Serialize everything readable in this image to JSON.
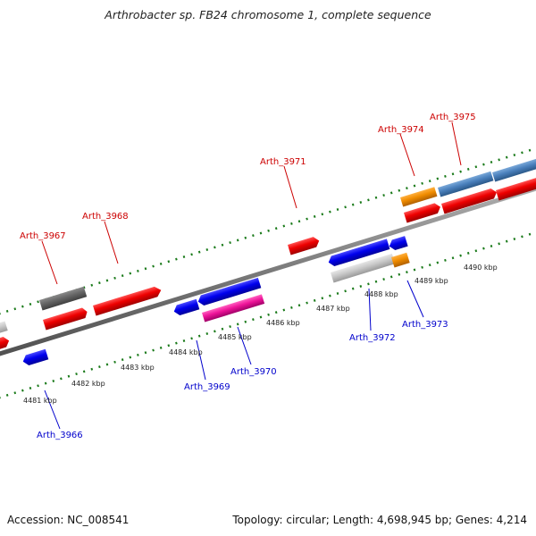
{
  "title": "Arthrobacter sp. FB24 chromosome 1, complete sequence",
  "footer": {
    "accession": "Accession: NC_008541",
    "summary": "Topology: circular; Length: 4,698,945 bp; Genes: 4,214"
  },
  "colors": {
    "forward_label": "#cc0000",
    "reverse_label": "#0000cc",
    "tick": "#1a7a1a",
    "backbone": "#7a7a7a"
  },
  "scale_labels": [
    "4481 kbp",
    "4482 kbp",
    "4483 kbp",
    "4484 kbp",
    "4485 kbp",
    "4486 kbp",
    "4487 kbp",
    "4488 kbp",
    "4489 kbp",
    "4490 kbp"
  ],
  "forward_gene_labels": [
    "Arth_3967",
    "Arth_3968",
    "Arth_3971",
    "Arth_3974",
    "Arth_3975"
  ],
  "reverse_gene_labels": [
    "Arth_3966",
    "Arth_3969",
    "Arth_3970",
    "Arth_3972",
    "Arth_3973"
  ]
}
